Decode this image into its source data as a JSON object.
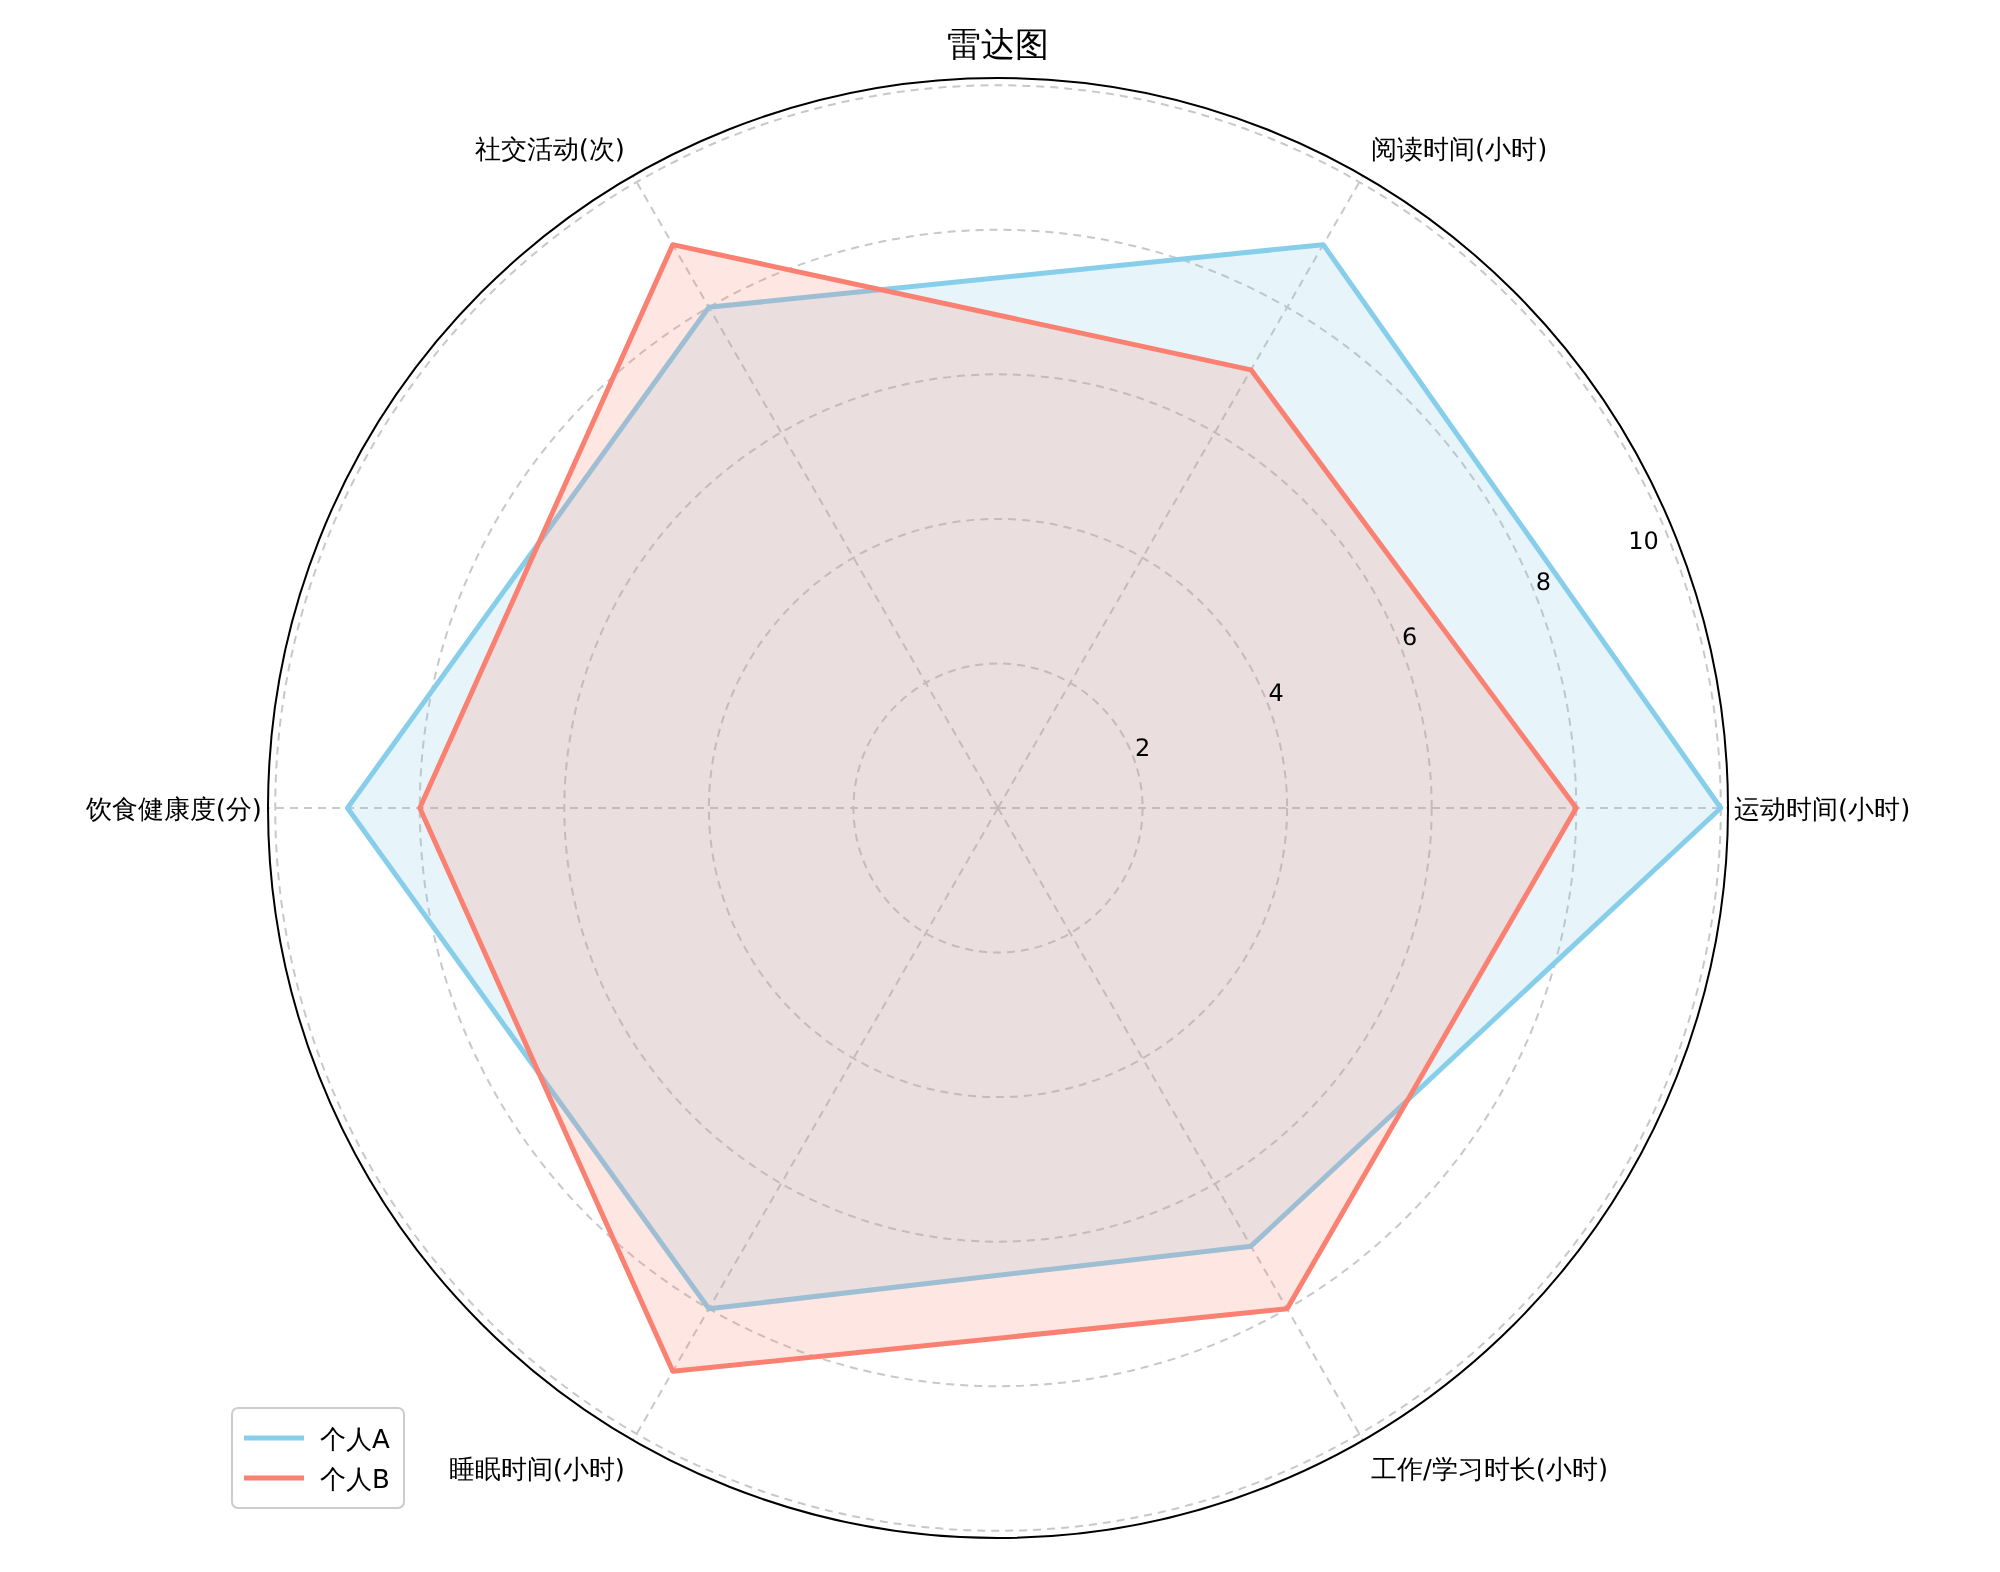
{
  "chart_data": {
    "type": "radar",
    "title": "雷达图",
    "categories": [
      "阅读时间(小时)",
      "运动时间(小时)",
      "工作/学习时长(小时)",
      "睡眠时间(小时)",
      "饮食健康度(分)",
      "社交活动(次)"
    ],
    "series": [
      {
        "name": "个人A",
        "color": "#87ceeb",
        "values": [
          9,
          10,
          7,
          8,
          9,
          8
        ]
      },
      {
        "name": "个人B",
        "color": "#fa8072",
        "values": [
          7,
          8,
          8,
          9,
          8,
          9
        ]
      }
    ],
    "ylim": [
      0,
      10.1
    ],
    "yticks": [
      2,
      4,
      6,
      8,
      10
    ],
    "grid": true,
    "legend": "bottom left",
    "line_style": "solid",
    "marker": "none"
  }
}
